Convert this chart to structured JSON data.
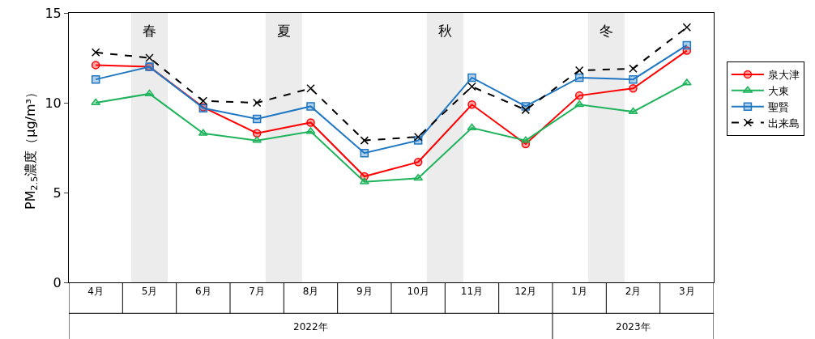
{
  "chart_data": {
    "type": "line",
    "ylabel": "PM$_{2.5}$濃度（μg/m³）",
    "categories": [
      "4月",
      "5月",
      "6月",
      "7月",
      "8月",
      "9月",
      "10月",
      "11月",
      "12月",
      "1月",
      "2月",
      "3月"
    ],
    "series": [
      {
        "name": "泉大津",
        "color": "#ff0000",
        "marker": "circle",
        "line_style": "solid",
        "values": [
          12.1,
          12.0,
          9.75,
          8.3,
          8.9,
          5.9,
          6.7,
          9.9,
          7.7,
          10.4,
          10.8,
          12.9
        ]
      },
      {
        "name": "大東",
        "color": "#1db35a",
        "marker": "triangle",
        "line_style": "solid",
        "values": [
          10.0,
          10.5,
          8.3,
          7.9,
          8.4,
          5.6,
          5.8,
          8.6,
          7.9,
          9.9,
          9.5,
          11.1
        ]
      },
      {
        "name": "聖賢",
        "color": "#1f77c4",
        "marker": "square",
        "line_style": "solid",
        "values": [
          11.3,
          12.0,
          9.7,
          9.1,
          9.8,
          7.2,
          7.9,
          11.4,
          9.8,
          11.4,
          11.3,
          13.2
        ]
      },
      {
        "name": "出来島",
        "color": "#000000",
        "marker": "cross",
        "line_style": "dashed",
        "values": [
          12.8,
          12.5,
          10.1,
          10.0,
          10.8,
          7.9,
          8.1,
          10.9,
          9.6,
          11.8,
          11.9,
          14.2
        ]
      }
    ],
    "ylim": [
      0,
      15
    ],
    "yticks": [
      0,
      5,
      10,
      15
    ],
    "grid": false,
    "legend": "right",
    "bands": [
      {
        "axis": "x",
        "from": "5月",
        "to": "5月",
        "label": "春",
        "color": "#ececec"
      },
      {
        "axis": "x",
        "from": "7月",
        "to": "8月",
        "label": "夏",
        "color": "#ececec"
      },
      {
        "axis": "x",
        "from": "10月",
        "to": "11月",
        "label": "秋",
        "color": "#ececec"
      },
      {
        "axis": "x",
        "from": "1月",
        "to": "2月",
        "label": "冬",
        "color": "#ececec"
      }
    ],
    "annotations": [
      "2022年",
      "2023年"
    ]
  }
}
